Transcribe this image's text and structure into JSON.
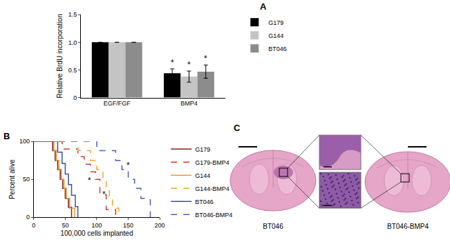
{
  "chart_data": [
    {
      "title": "A",
      "type": "bar",
      "categories": [
        "EGF/FGF",
        "BMP4"
      ],
      "series": [
        {
          "name": "G179",
          "color": "#000000",
          "values": [
            1,
            0.44
          ],
          "errors": [
            0,
            0.08
          ]
        },
        {
          "name": "G144",
          "color": "#c4c4c4",
          "values": [
            1,
            0.38
          ],
          "errors": [
            0,
            0.1
          ]
        },
        {
          "name": "BT046",
          "color": "#8c8c8c",
          "values": [
            1,
            0.47
          ],
          "errors": [
            0,
            0.12
          ]
        }
      ],
      "y_label": "Relative BrdU incorporation",
      "ylim": [
        0,
        1.5
      ],
      "yticks": [
        0,
        0.5,
        {
          "value": 1,
          "label": "1.0"
        },
        1.5
      ],
      "grid": false,
      "legend": "upper right",
      "annotations": [
        {
          "text": "*",
          "category": "BMP4",
          "series": "G179"
        },
        {
          "text": "*",
          "category": "BMP4",
          "series": "G144"
        },
        {
          "text": "*",
          "category": "BMP4",
          "series": "BT046"
        }
      ]
    },
    {
      "title": "B",
      "type": "line",
      "x_label": "100,000 cells implanted",
      "y_label": "Percent alive",
      "xlim": [
        0,
        200
      ],
      "xticks": [
        0,
        50,
        100,
        150,
        200
      ],
      "ylim": [
        0,
        100
      ],
      "yticks": [
        0,
        50,
        100
      ],
      "grid": false,
      "legend": "right",
      "series": [
        {
          "name": "G179",
          "color": "#8b1a1a",
          "line_style": "solid",
          "x": [
            0,
            30,
            34,
            38,
            42,
            46,
            50,
            55,
            60
          ],
          "values": [
            100,
            88,
            75,
            63,
            50,
            38,
            25,
            13,
            0
          ]
        },
        {
          "name": "G179-BMP4",
          "color": "#d23a2a",
          "line_style": "dashed",
          "x": [
            0,
            45,
            70,
            80,
            90,
            98,
            105,
            115,
            130
          ],
          "values": [
            100,
            90,
            80,
            70,
            60,
            50,
            30,
            10,
            0
          ]
        },
        {
          "name": "G144",
          "color": "#e39a2d",
          "line_style": "solid",
          "x": [
            0,
            32,
            36,
            40,
            44,
            48,
            52,
            57,
            65
          ],
          "values": [
            100,
            88,
            75,
            63,
            50,
            38,
            25,
            12,
            0
          ]
        },
        {
          "name": "G144-BMP4",
          "color": "#f0a830",
          "line_style": "dashed",
          "x": [
            0,
            70,
            90,
            100,
            110,
            115,
            120,
            125,
            135
          ],
          "values": [
            100,
            88,
            75,
            63,
            50,
            38,
            25,
            12,
            0
          ]
        },
        {
          "name": "BT046",
          "color": "#3a4fa8",
          "line_style": "solid",
          "x": [
            0,
            38,
            45,
            50,
            55,
            60,
            66,
            70
          ],
          "values": [
            100,
            86,
            71,
            57,
            43,
            29,
            14,
            0
          ]
        },
        {
          "name": "BT046-BMP4",
          "color": "#4a5cc0",
          "line_style": "dashed",
          "x": [
            0,
            100,
            130,
            140,
            150,
            160,
            170,
            185
          ],
          "values": [
            100,
            88,
            75,
            63,
            50,
            38,
            25,
            0
          ]
        }
      ],
      "annotations": [
        {
          "text": "*",
          "x": 88,
          "y": 48
        },
        {
          "text": "*",
          "x": 112,
          "y": 30
        },
        {
          "text": "*",
          "x": 150,
          "y": 68
        }
      ]
    }
  ],
  "histology": {
    "title": "C",
    "labels": [
      "BT046",
      "BT046-BMP4"
    ]
  }
}
